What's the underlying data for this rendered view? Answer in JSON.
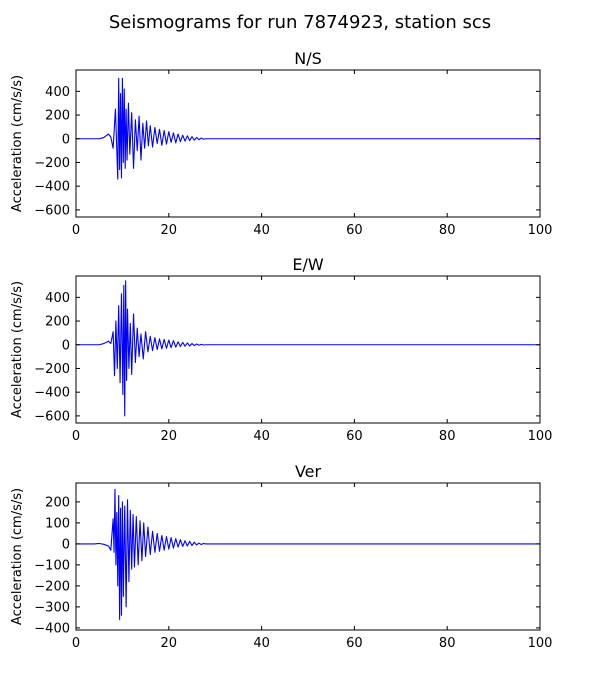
{
  "figure": {
    "title": "Seismograms for run 7874923, station scs"
  },
  "chart_data": [
    {
      "type": "line",
      "title": "N/S",
      "xlabel": "",
      "ylabel": "Acceleration (cm/s/s)",
      "xlim": [
        0,
        100
      ],
      "ylim": [
        -660,
        580
      ],
      "xticks": [
        0,
        20,
        40,
        60,
        80,
        100
      ],
      "yticks": [
        -600,
        -400,
        -200,
        0,
        200,
        400
      ],
      "xtick_labels": [
        "0",
        "20",
        "40",
        "60",
        "80",
        "100"
      ],
      "ytick_labels": [
        "−600",
        "−400",
        "−200",
        "0",
        "200",
        "400"
      ],
      "grid": false,
      "color": "#0000ff",
      "series": [
        {
          "x": [
            0,
            5,
            6,
            7,
            7.5,
            8,
            8.5,
            9,
            9.2,
            9.4,
            9.6,
            9.8,
            10,
            10.2,
            10.4,
            10.6,
            10.8,
            11,
            11.3,
            11.6,
            12,
            12.4,
            12.8,
            13.2,
            13.6,
            14,
            14.4,
            14.8,
            15.2,
            15.6,
            16,
            16.5,
            17,
            17.5,
            18,
            18.5,
            19,
            19.5,
            20,
            20.5,
            21,
            21.5,
            22,
            22.5,
            23,
            23.5,
            24,
            24.5,
            25,
            25.5,
            26,
            26.5,
            27,
            27.5,
            28,
            100
          ],
          "y": [
            0,
            0,
            10,
            40,
            15,
            -80,
            250,
            -340,
            510,
            -260,
            380,
            -330,
            510,
            -200,
            420,
            -250,
            250,
            -180,
            300,
            -130,
            220,
            -250,
            160,
            -100,
            190,
            -180,
            130,
            -80,
            150,
            -60,
            110,
            -70,
            95,
            -40,
            80,
            -55,
            70,
            -45,
            60,
            -30,
            50,
            -35,
            40,
            -25,
            30,
            -20,
            25,
            -15,
            18,
            -12,
            12,
            -8,
            6,
            -4,
            0,
            0
          ]
        }
      ]
    },
    {
      "type": "line",
      "title": "E/W",
      "xlabel": "",
      "ylabel": "Acceleration (cm/s/s)",
      "xlim": [
        0,
        100
      ],
      "ylim": [
        -660,
        580
      ],
      "xticks": [
        0,
        20,
        40,
        60,
        80,
        100
      ],
      "yticks": [
        -600,
        -400,
        -200,
        0,
        200,
        400
      ],
      "xtick_labels": [
        "0",
        "20",
        "40",
        "60",
        "80",
        "100"
      ],
      "ytick_labels": [
        "−600",
        "−400",
        "−200",
        "0",
        "200",
        "400"
      ],
      "grid": false,
      "color": "#0000ff",
      "series": [
        {
          "x": [
            0,
            5,
            6,
            7,
            7.5,
            8,
            8.3,
            8.6,
            8.9,
            9.2,
            9.5,
            9.8,
            10.1,
            10.3,
            10.5,
            10.7,
            10.9,
            11.1,
            11.4,
            11.7,
            12,
            12.4,
            12.8,
            13.2,
            13.6,
            14,
            14.5,
            15,
            15.5,
            16,
            16.5,
            17,
            17.5,
            18,
            18.5,
            19,
            19.5,
            20,
            20.5,
            21,
            21.5,
            22,
            22.5,
            23,
            23.5,
            24,
            24.5,
            25,
            25.5,
            26,
            26.5,
            27,
            27.5,
            28,
            100
          ],
          "y": [
            0,
            0,
            10,
            30,
            10,
            110,
            -260,
            200,
            -200,
            330,
            -320,
            430,
            -420,
            500,
            -600,
            540,
            -300,
            300,
            -200,
            180,
            -250,
            260,
            -150,
            140,
            -100,
            90,
            -120,
            110,
            -60,
            70,
            -50,
            60,
            -40,
            50,
            -35,
            45,
            -30,
            40,
            -25,
            35,
            -20,
            25,
            -15,
            20,
            -12,
            15,
            -10,
            10,
            -7,
            6,
            -4,
            3,
            -2,
            0,
            0
          ]
        }
      ]
    },
    {
      "type": "line",
      "title": "Ver",
      "xlabel": "",
      "ylabel": "Acceleration (cm/s/s)",
      "xlim": [
        0,
        100
      ],
      "ylim": [
        -410,
        290
      ],
      "xticks": [
        0,
        20,
        40,
        60,
        80,
        100
      ],
      "yticks": [
        -400,
        -300,
        -200,
        -100,
        0,
        100,
        200
      ],
      "xtick_labels": [
        "0",
        "20",
        "40",
        "60",
        "80",
        "100"
      ],
      "ytick_labels": [
        "−400",
        "−300",
        "−200",
        "−100",
        "0",
        "100",
        "200"
      ],
      "grid": false,
      "color": "#0000ff",
      "series": [
        {
          "x": [
            0,
            4,
            5,
            6,
            7,
            7.5,
            8,
            8.2,
            8.4,
            8.6,
            8.8,
            9,
            9.2,
            9.4,
            9.6,
            9.8,
            10,
            10.2,
            10.5,
            10.8,
            11.1,
            11.4,
            11.7,
            12,
            12.3,
            12.6,
            13,
            13.4,
            13.8,
            14.2,
            14.6,
            15,
            15.5,
            16,
            16.5,
            17,
            17.5,
            18,
            18.5,
            19,
            19.5,
            20,
            20.5,
            21,
            21.5,
            22,
            22.5,
            23,
            23.5,
            24,
            24.5,
            25,
            25.5,
            26,
            26.5,
            27,
            27.5,
            28,
            100
          ],
          "y": [
            0,
            0,
            2,
            -2,
            -10,
            -30,
            120,
            -40,
            260,
            -100,
            150,
            -200,
            230,
            -360,
            170,
            -340,
            200,
            -250,
            180,
            -300,
            210,
            -180,
            160,
            -120,
            140,
            -110,
            130,
            -100,
            110,
            -80,
            100,
            -60,
            80,
            -50,
            60,
            -40,
            50,
            -35,
            40,
            -30,
            35,
            -25,
            30,
            -20,
            25,
            -15,
            20,
            -12,
            15,
            -10,
            12,
            -8,
            8,
            -5,
            4,
            -3,
            2,
            0,
            0
          ]
        }
      ]
    }
  ]
}
